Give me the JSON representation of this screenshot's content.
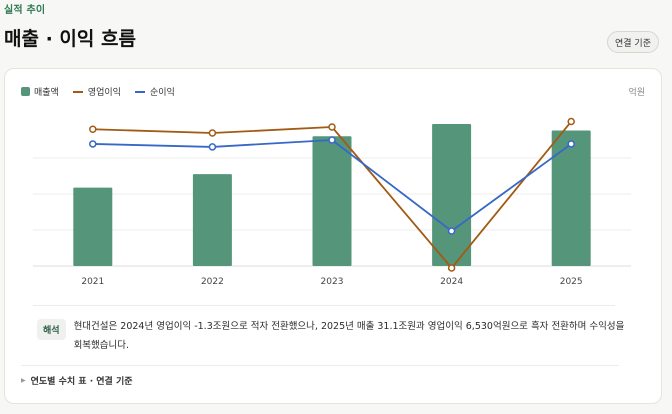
{
  "header": {
    "eyebrow": "실적 추이",
    "title": "매출 · 이익 흐름",
    "basis_button": "연결 기준"
  },
  "legend": {
    "unit": "억원"
  },
  "colors": {
    "revenue": "#55967a",
    "operating_profit": "#a35a14",
    "net_income": "#3768c8",
    "grid": "#ececea"
  },
  "chart_data": {
    "type": "bar",
    "categories": [
      "2021",
      "2022",
      "2023",
      "2024",
      "2025"
    ],
    "grid": true,
    "legend_position": "top-left",
    "series": [
      {
        "name": "매출액",
        "type": "bar",
        "values": [
          180000,
          211000,
          298000,
          326000,
          311000
        ]
      },
      {
        "name": "영업이익",
        "type": "line",
        "values": [
          5500,
          5000,
          5800,
          -13000,
          6530
        ]
      },
      {
        "name": "순이익",
        "type": "line",
        "values": [
          3800,
          3500,
          4200,
          -5000,
          3800
        ]
      }
    ]
  },
  "note": {
    "tag": "해석",
    "text": "현대건설은 2024년 영업이익 -1.3조원으로 적자 전환했으나, 2025년 매출 31.1조원과 영업이익 6,530억원으로 흑자 전환하며 수익성을 회복했습니다."
  },
  "table_toggle": {
    "label": "연도별 수치 표 · 연결 기준"
  }
}
